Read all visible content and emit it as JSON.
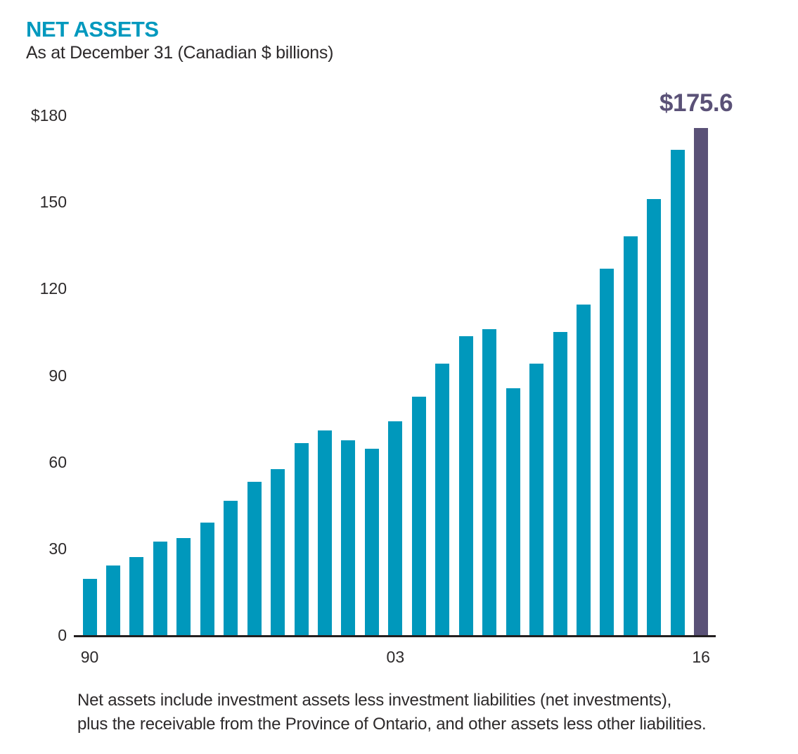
{
  "header": {
    "title": "NET ASSETS",
    "subtitle": "As at December 31 (Canadian $ billions)"
  },
  "callout": {
    "value_label": "$175.6"
  },
  "footnote": {
    "line1": "Net assets include investment assets less investment liabilities (net investments),",
    "line2": "plus the receivable from the Province of Ontario, and other assets less other liabilities."
  },
  "chart_data": {
    "type": "bar",
    "title": "NET ASSETS",
    "subtitle": "As at December 31 (Canadian $ billions)",
    "unit": "Canadian $ billions",
    "categories": [
      "1990",
      "1991",
      "1992",
      "1993",
      "1994",
      "1995",
      "1996",
      "1997",
      "1998",
      "1999",
      "2000",
      "2001",
      "2002",
      "2003",
      "2004",
      "2005",
      "2006",
      "2007",
      "2008",
      "2009",
      "2010",
      "2011",
      "2012",
      "2013",
      "2014",
      "2015",
      "2016"
    ],
    "values": [
      19.4,
      24,
      27,
      32.5,
      33.5,
      39,
      46.5,
      53,
      57.5,
      66.5,
      71,
      67.5,
      64.5,
      74,
      82.5,
      94,
      103.5,
      106,
      85.5,
      94,
      105,
      114.5,
      127,
      138,
      151,
      168,
      175.6
    ],
    "highlight_index": 26,
    "highlight_label": "$175.6",
    "ylim": [
      0,
      180
    ],
    "y_ticks": [
      {
        "v": 0,
        "label": "0"
      },
      {
        "v": 30,
        "label": "30"
      },
      {
        "v": 60,
        "label": "60"
      },
      {
        "v": 90,
        "label": "90"
      },
      {
        "v": 120,
        "label": "120"
      },
      {
        "v": 150,
        "label": "150"
      },
      {
        "v": 180,
        "label": "$180"
      }
    ],
    "x_ticks": [
      {
        "index": 0,
        "label": "90"
      },
      {
        "index": 13,
        "label": "03"
      },
      {
        "index": 26,
        "label": "16"
      }
    ],
    "grid": false,
    "legend": "none",
    "colors": {
      "bar": "#0098BC",
      "highlight_bar": "#5A5177",
      "title": "#0099BE",
      "text": "#2D2A2B",
      "axis": "#231F20"
    }
  }
}
